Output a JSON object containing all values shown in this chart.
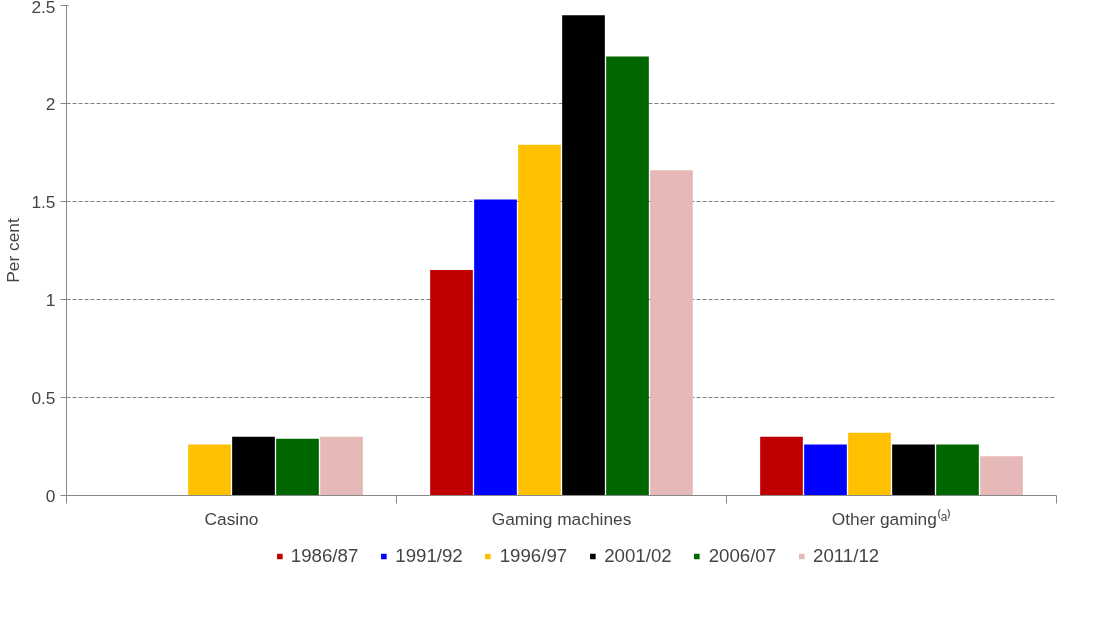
{
  "chart_data": {
    "type": "bar",
    "ylabel": "Per cent",
    "categories": [
      "Casino",
      "Gaming machines",
      "Other gaming⁽ᵃ⁾"
    ],
    "series": [
      {
        "name": "1986/87",
        "color": "#c00000",
        "values": [
          null,
          1.15,
          0.3
        ]
      },
      {
        "name": "1991/92",
        "color": "#0000ff",
        "values": [
          null,
          1.51,
          0.26
        ]
      },
      {
        "name": "1996/97",
        "color": "#ffc000",
        "values": [
          0.26,
          1.79,
          0.32
        ]
      },
      {
        "name": "2001/02",
        "color": "#000000",
        "values": [
          0.3,
          2.45,
          0.26
        ]
      },
      {
        "name": "2006/07",
        "color": "#006600",
        "values": [
          0.29,
          2.24,
          0.26
        ]
      },
      {
        "name": "2011/12",
        "color": "#e6b9b8",
        "values": [
          0.3,
          1.66,
          0.2
        ]
      }
    ],
    "ylim": [
      0,
      2.5
    ],
    "yticks": [
      0,
      0.5,
      1,
      1.5,
      2,
      2.5
    ],
    "grid": "y",
    "legend": "bottom"
  }
}
